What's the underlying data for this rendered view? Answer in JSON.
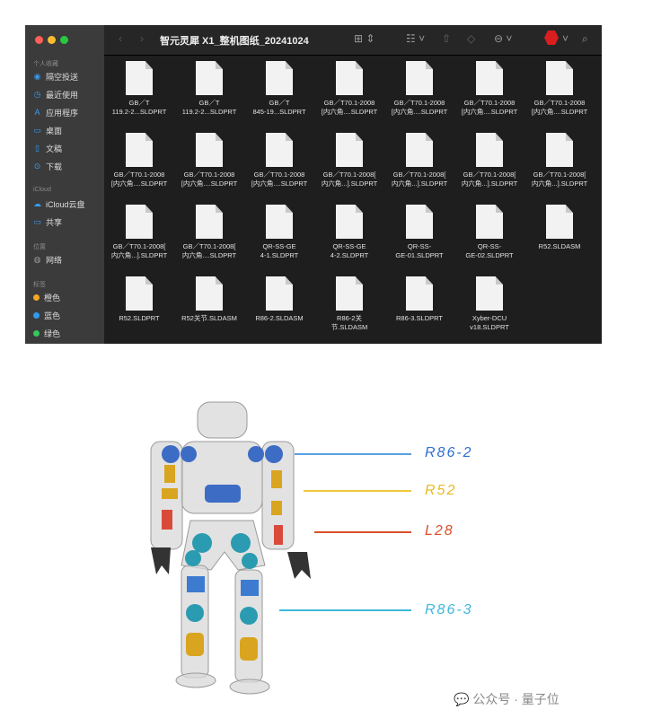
{
  "window": {
    "title": "智元灵犀 X1_整机图纸_20241024",
    "traffic_lights": [
      "#ff5f57",
      "#febc2e",
      "#28c840"
    ]
  },
  "toolbar": {
    "back_icon": "chevron-left-icon",
    "forward_icon": "chevron-right-icon",
    "view_icon": "grid-view-icon",
    "group_icon": "group-icon",
    "share_icon": "share-icon",
    "tag_icon": "tag-icon",
    "more_icon": "ellipsis-circle-icon",
    "app_icon": "red-hexagon-app-icon",
    "search_icon": "search-icon"
  },
  "sidebar": {
    "favorites_header": "个人收藏",
    "favorites": [
      {
        "label": "隔空投送",
        "icon": "airdrop-icon"
      },
      {
        "label": "最近使用",
        "icon": "clock-icon"
      },
      {
        "label": "应用程序",
        "icon": "apps-icon"
      },
      {
        "label": "桌面",
        "icon": "desktop-icon"
      },
      {
        "label": "文稿",
        "icon": "document-icon"
      },
      {
        "label": "下载",
        "icon": "download-icon"
      }
    ],
    "icloud_header": "iCloud",
    "icloud": [
      {
        "label": "iCloud云盘",
        "icon": "cloud-icon"
      },
      {
        "label": "共享",
        "icon": "shared-folder-icon"
      }
    ],
    "locations_header": "位置",
    "locations": [
      {
        "label": "网络",
        "icon": "globe-icon"
      }
    ],
    "tags_header": "标签",
    "tags": [
      {
        "label": "橙色",
        "color": "#f5a623"
      },
      {
        "label": "蓝色",
        "color": "#2d9cf0"
      },
      {
        "label": "绿色",
        "color": "#34c759"
      }
    ]
  },
  "files": [
    "GB／T\n119.2-2...SLDPRT",
    "GB／T\n119.2-2...SLDPRT",
    "GB／T\n845-19...SLDPRT",
    "GB／T70.1-2008\n[内六角....SLDPRT",
    "GB／T70.1-2008\n[内六角....SLDPRT",
    "GB／T70.1-2008\n[内六角....SLDPRT",
    "GB／T70.1-2008\n[内六角....SLDPRT",
    "GB／T70.1-2008\n[内六角....SLDPRT",
    "GB／T70.1-2008\n[内六角....SLDPRT",
    "GB／T70.1-2008\n[内六角....SLDPRT",
    "GB／T70.1-2008[\n内六角...].SLDPRT",
    "GB／T70.1-2008[\n内六角...].SLDPRT",
    "GB／T70.1-2008[\n内六角...].SLDPRT",
    "GB／T70.1-2008[\n内六角...].SLDPRT",
    "GB／T70.1-2008[\n内六角...].SLDPRT",
    "GB／T70.1-2008[\n内六角....SLDPRT",
    "QR-SS-GE\n4-1.SLDPRT",
    "QR-SS-GE\n4-2.SLDPRT",
    "QR-SS-\nGE-01.SLDPRT",
    "QR-SS-\nGE-02.SLDPRT",
    "R52.SLDASM",
    "R52.SLDPRT",
    "R52关节.SLDASM",
    "R86-2.SLDASM",
    "R86-2关\n节.SLDASM",
    "R86-3.SLDPRT",
    "Xyber-DCU\nv18.SLDPRT"
  ],
  "robot_labels": [
    {
      "text": "R86-2",
      "color": "#2e6fd1"
    },
    {
      "text": "R52",
      "color": "#e8b923"
    },
    {
      "text": "L28",
      "color": "#d9502a"
    },
    {
      "text": "R86-3",
      "color": "#3db8dc"
    }
  ],
  "watermark": "公众号 · 量子位"
}
